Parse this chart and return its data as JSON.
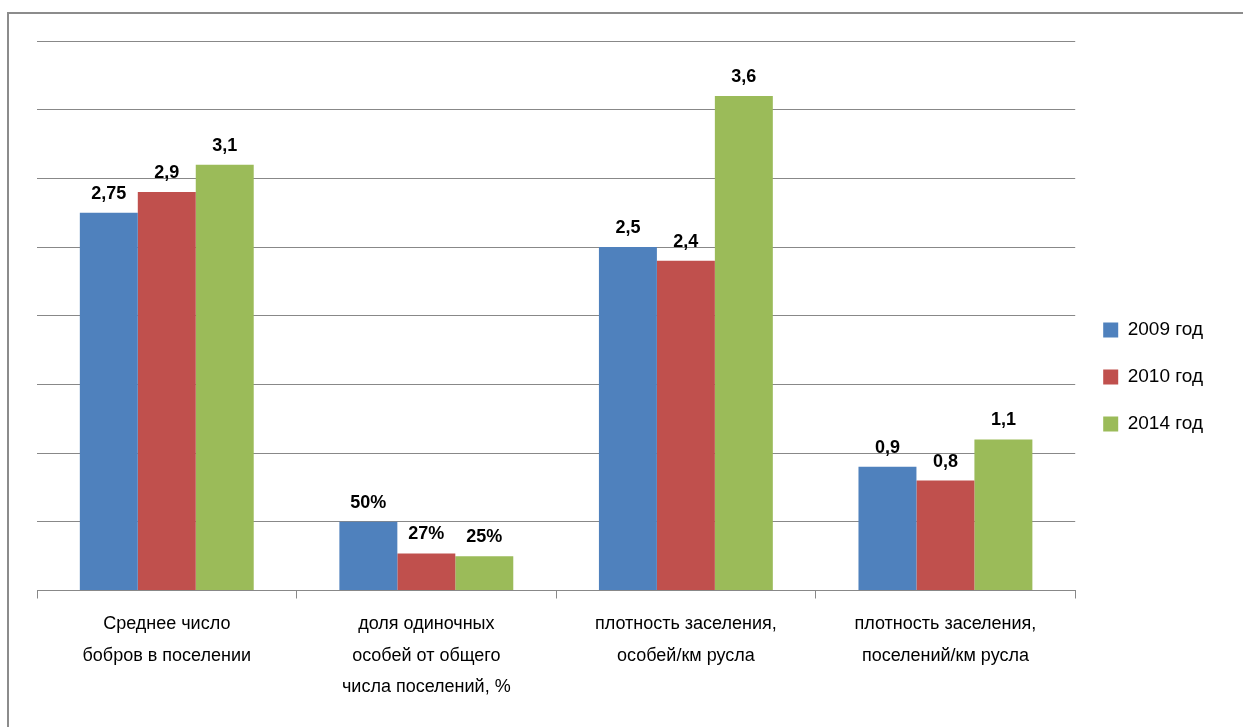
{
  "chart_data": {
    "type": "bar",
    "categories": [
      "Среднее число бобров в поселении",
      "доля одиночных особей от общего числа поселений, %",
      "плотность заселения, особей/км русла",
      "плотность заселения, поселений/км русла"
    ],
    "series": [
      {
        "name": "2009 год",
        "color": "#4f81bd",
        "values": [
          2.75,
          0.5,
          2.5,
          0.9
        ],
        "value_labels": [
          "2,75",
          "50%",
          "2,5",
          "0,9"
        ]
      },
      {
        "name": "2010 год",
        "color": "#c0504d",
        "values": [
          2.9,
          0.27,
          2.4,
          0.8
        ],
        "value_labels": [
          "2,9",
          "27%",
          "2,4",
          "0,8"
        ]
      },
      {
        "name": "2014 год",
        "color": "#9bbb59",
        "values": [
          3.1,
          0.25,
          3.6,
          1.1
        ],
        "value_labels": [
          "3,1",
          "25%",
          "3,6",
          "1,1"
        ]
      }
    ],
    "ylim": [
      0,
      4
    ],
    "yticks": [
      {
        "value": 0,
        "label": null
      },
      {
        "value": 0.5,
        "label": null
      },
      {
        "value": 1,
        "label": null
      },
      {
        "value": 1.5,
        "label": null
      },
      {
        "value": 2,
        "label": null
      },
      {
        "value": 2.5,
        "label": null
      },
      {
        "value": 3,
        "label": null
      },
      {
        "value": 3.5,
        "label": null
      },
      {
        "value": 4,
        "label": null
      }
    ],
    "grid": "y",
    "legend": "right",
    "tick_labels": "x"
  }
}
